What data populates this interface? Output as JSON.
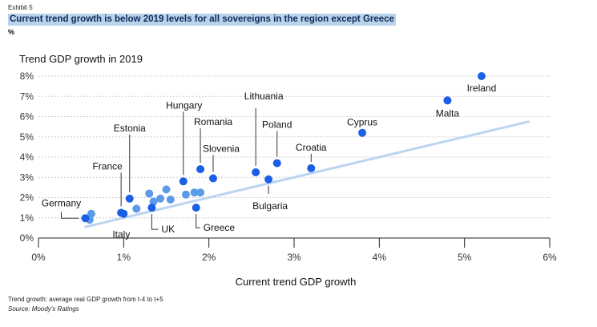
{
  "exhibit": "Exhibit 5",
  "title": "Current trend growth is below 2019 levels for all sovereigns in the region except Greece",
  "unit": "%",
  "footnote": "Trend growth: average real GDP growth from t-4 to t+5",
  "source": "Source: Moody's Ratings",
  "colors": {
    "highlighted": "#1a5fe6",
    "other": "#5b9ae8",
    "trendline": "#bcd4f0",
    "grid": "#cfcfcf"
  },
  "chart_data": {
    "type": "scatter",
    "xlabel": "Current trend GDP growth",
    "ylabel": "Trend GDP growth in 2019",
    "xlim": [
      0,
      6
    ],
    "ylim": [
      0,
      8
    ],
    "x_ticks": [
      0,
      1,
      2,
      3,
      4,
      5,
      6
    ],
    "x_tick_labels": [
      "0%",
      "1%",
      "2%",
      "3%",
      "4%",
      "5%",
      "6%"
    ],
    "y_ticks": [
      0,
      1,
      2,
      3,
      4,
      5,
      6,
      7,
      8
    ],
    "y_tick_labels": [
      "0%",
      "1%",
      "2%",
      "3%",
      "4%",
      "5%",
      "6%",
      "7%",
      "8%"
    ],
    "grid": "horizontal",
    "trendline": {
      "x": [
        0.55,
        5.75
      ],
      "y": [
        0.55,
        5.75
      ]
    },
    "labeled_points": [
      {
        "name": "Ireland",
        "x": 5.2,
        "y": 8.0
      },
      {
        "name": "Malta",
        "x": 4.8,
        "y": 6.8
      },
      {
        "name": "Cyprus",
        "x": 3.8,
        "y": 5.2
      },
      {
        "name": "Croatia",
        "x": 3.2,
        "y": 3.45
      },
      {
        "name": "Poland",
        "x": 2.8,
        "y": 3.7
      },
      {
        "name": "Lithuania",
        "x": 2.55,
        "y": 3.25
      },
      {
        "name": "Bulgaria",
        "x": 2.7,
        "y": 2.9
      },
      {
        "name": "Slovenia",
        "x": 2.05,
        "y": 2.95
      },
      {
        "name": "Romania",
        "x": 1.9,
        "y": 3.4
      },
      {
        "name": "Hungary",
        "x": 1.7,
        "y": 2.8
      },
      {
        "name": "Greece",
        "x": 1.85,
        "y": 1.5
      },
      {
        "name": "Estonia",
        "x": 1.07,
        "y": 1.95
      },
      {
        "name": "France",
        "x": 0.97,
        "y": 1.25
      },
      {
        "name": "UK",
        "x": 1.33,
        "y": 1.5
      },
      {
        "name": "Italy",
        "x": 1.0,
        "y": 1.2
      },
      {
        "name": "Germany",
        "x": 0.55,
        "y": 0.98
      }
    ],
    "other_points": [
      {
        "x": 0.62,
        "y": 1.2
      },
      {
        "x": 0.6,
        "y": 0.9
      },
      {
        "x": 1.15,
        "y": 1.45
      },
      {
        "x": 1.3,
        "y": 2.2
      },
      {
        "x": 1.35,
        "y": 1.8
      },
      {
        "x": 1.43,
        "y": 1.95
      },
      {
        "x": 1.5,
        "y": 2.4
      },
      {
        "x": 1.55,
        "y": 1.9
      },
      {
        "x": 1.73,
        "y": 2.15
      },
      {
        "x": 1.83,
        "y": 2.25
      },
      {
        "x": 1.9,
        "y": 2.25
      }
    ]
  }
}
